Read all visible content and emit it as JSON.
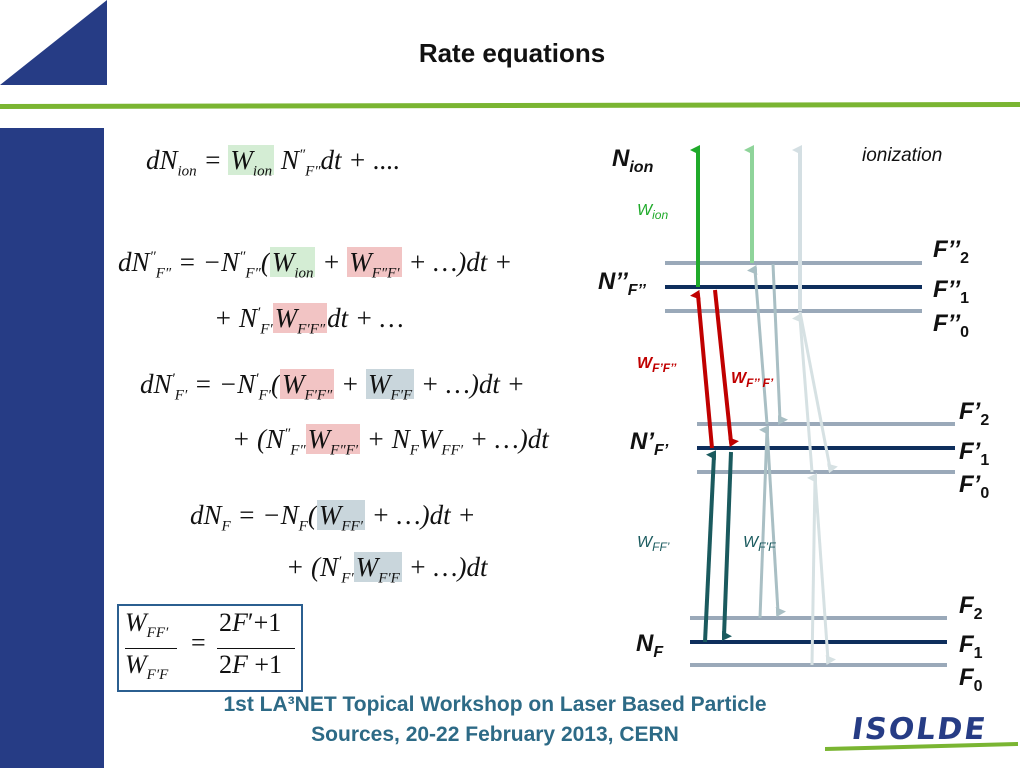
{
  "slide": {
    "title": "Rate equations",
    "footer_line1": "1st LA³NET Topical Workshop on Laser Based Particle",
    "footer_line2": "Sources, 20-22 February 2013,   CERN",
    "logo_text": "ISOLDE"
  },
  "equations": {
    "eq1": "dN_ion = W_ion N''_F'' dt + ....",
    "eq2_line1": "dN''_F'' = −N''_F'' (W_ion + W_F''F' + ...) dt +",
    "eq2_line2": "+ N'_F' W_F'F'' dt + ...",
    "eq3_line1": "dN'_F' = −N'_F' (W_F'F'' + W_F'F + ...) dt +",
    "eq3_line2": "+ (N''_F'' W_F''F' + N_F W_FF' + ...) dt",
    "eq4_line1": "dN_F = −N_F (W_FF' + ...) dt +",
    "eq4_line2": "+ (N'_F' W_F'F + ...) dt",
    "ratio": "W_FF' / W_F'F = (2F'+1)/(2F+1)"
  },
  "diagram": {
    "ionization": "ionization",
    "n_ion": "N",
    "n_ion_sub": "ion",
    "n2": "N’’",
    "n2_sub": "F’’",
    "n1": "N’",
    "n1_sub": "F’",
    "n0": "N",
    "n0_sub": "F",
    "w_ion": "W",
    "w_ion_sub": "ion",
    "w_f1f2": "W",
    "w_f1f2_sub": "F’F’’",
    "w_f2f1": "W",
    "w_f2f1_sub": "F’’ F’",
    "w_ff1": "W",
    "w_ff1_sub": "FF’",
    "w_f1f": "W",
    "w_f1f_sub": "F’F",
    "levels_upper": [
      {
        "name": "F’’",
        "sub": "2"
      },
      {
        "name": "F’’",
        "sub": "1"
      },
      {
        "name": "F’’",
        "sub": "0"
      }
    ],
    "levels_middle": [
      {
        "name": "F’",
        "sub": "2"
      },
      {
        "name": "F’",
        "sub": "1"
      },
      {
        "name": "F’",
        "sub": "0"
      }
    ],
    "levels_lower": [
      {
        "name": "F",
        "sub": "2"
      },
      {
        "name": "F",
        "sub": "1"
      },
      {
        "name": "F",
        "sub": "0"
      }
    ],
    "colors": {
      "green": "#1faa2a",
      "red": "#c00000",
      "teal": "#1a5a5e",
      "navy": "#0e2e5c",
      "grey_level": "#9aa9b9",
      "slide_blue": "#263c85",
      "slide_green": "#7ab532"
    }
  }
}
